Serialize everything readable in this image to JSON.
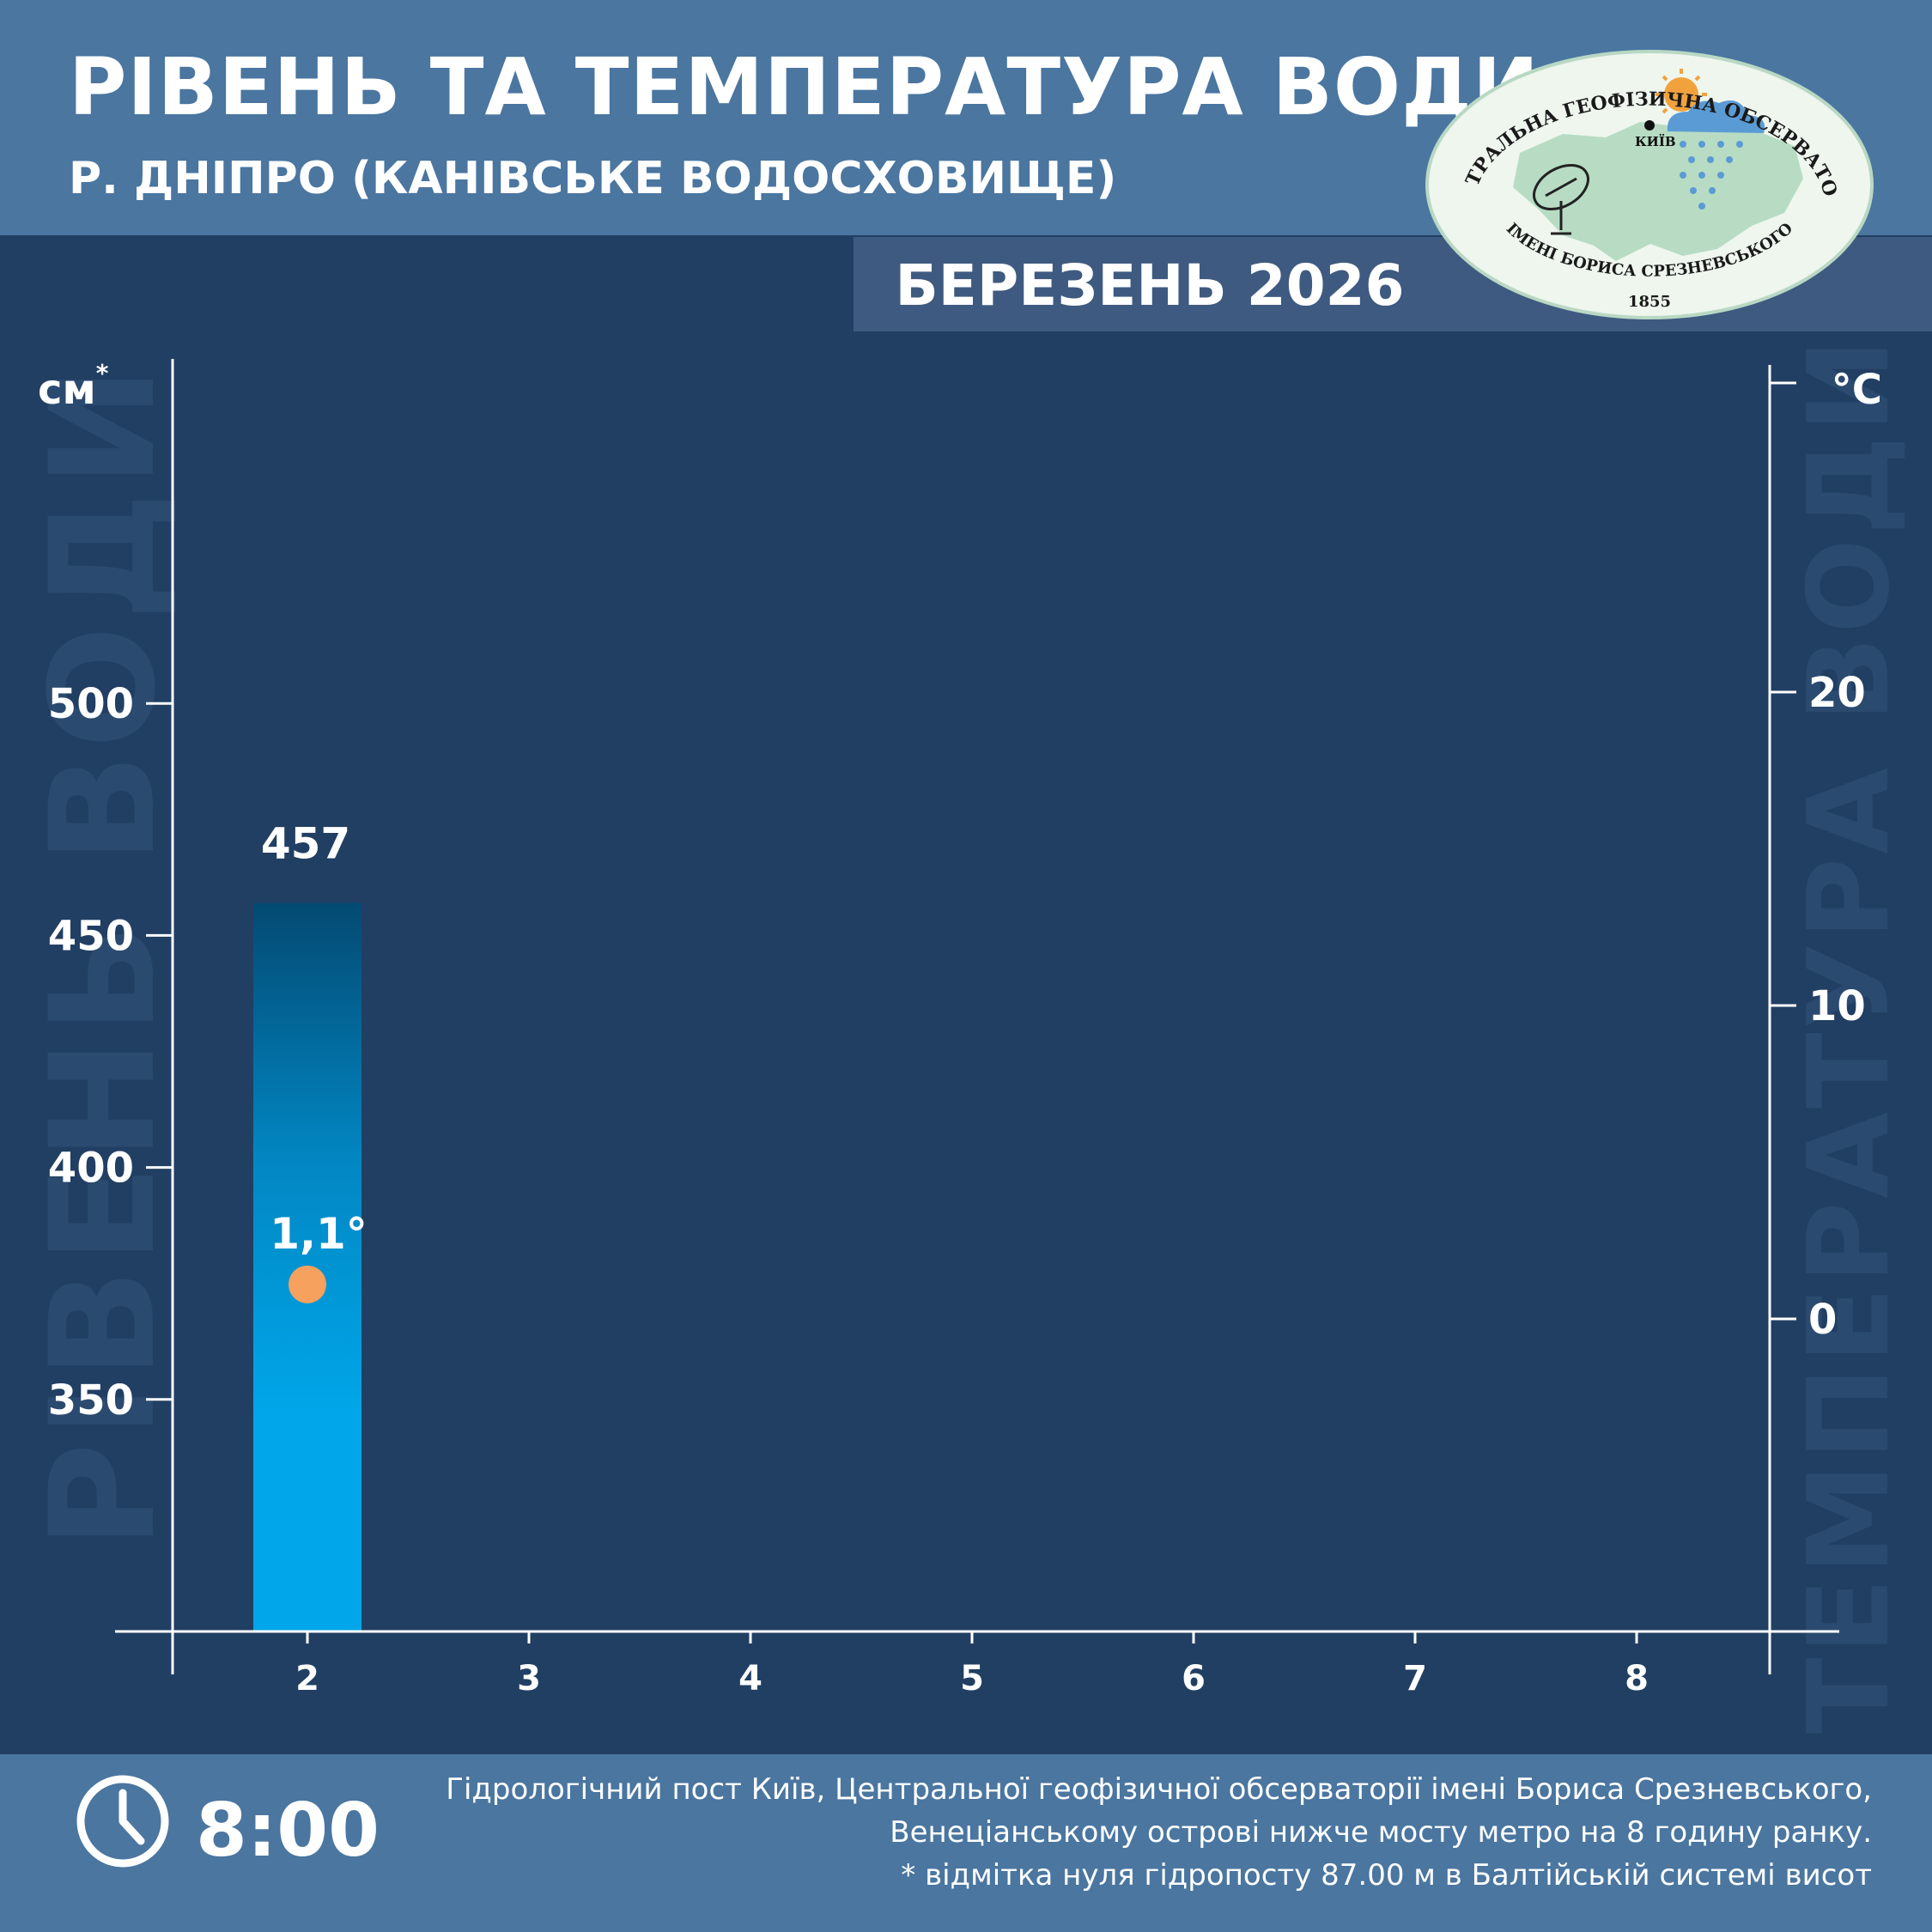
{
  "header": {
    "title": "РІВЕНЬ ТА ТЕМПЕРАТУРА ВОДИ",
    "subtitle": "Р. ДНІПРО (КАНІВСЬКЕ ВОДОСХОВИЩЕ)",
    "month": "БЕРЕЗЕНЬ 2026"
  },
  "logo": {
    "top_text": "ЦЕНТРАЛЬНА ГЕОФІЗИЧНА ОБСЕРВАТОРІЯ",
    "bottom_text": "ІМЕНІ БОРИСА СРЕЗНЕВСЬКОГО",
    "year": "1855",
    "city": "КИЇВ"
  },
  "chart_data": {
    "type": "bar",
    "categories": [
      "2",
      "3",
      "4",
      "5",
      "6",
      "7",
      "8"
    ],
    "level_values": [
      457,
      null,
      null,
      null,
      null,
      null,
      null
    ],
    "temperature_values": [
      1.1,
      null,
      null,
      null,
      null,
      null,
      null
    ],
    "level_labels": [
      "457",
      "",
      "",
      "",
      "",
      "",
      ""
    ],
    "temperature_labels": [
      "1,1°",
      "",
      "",
      "",
      "",
      "",
      ""
    ],
    "y_left": {
      "unit": "см",
      "unit_mark": "*",
      "watermark": "РІВЕНЬ ВОДИ",
      "ticks": [
        350,
        400,
        450,
        500
      ],
      "ylim": [
        300,
        560
      ]
    },
    "y_right": {
      "unit": "°С",
      "watermark": "ТЕМПЕРАТУРА ВОДИ",
      "ticks": [
        0,
        10,
        20
      ],
      "ylim": [
        -10,
        30
      ]
    },
    "grid": false,
    "colors": {
      "bar_top": "#034a72",
      "bar_mid": "#0286c2",
      "bar_bottom": "#00a6e9",
      "temperature_point": "#f6a15e",
      "axis": "#ffffff",
      "watermark": "#2b4a6f"
    }
  },
  "footer": {
    "time": "8:00",
    "notes": [
      "Гідрологічний пост Київ, Центральної геофізичної обсерваторії імені Бориса Срезневського,",
      "Венеціанському острові нижче мосту метро  на 8 годину ранку.",
      "* відмітка нуля гідропосту 87.00 м в Балтійській системі висот"
    ]
  }
}
